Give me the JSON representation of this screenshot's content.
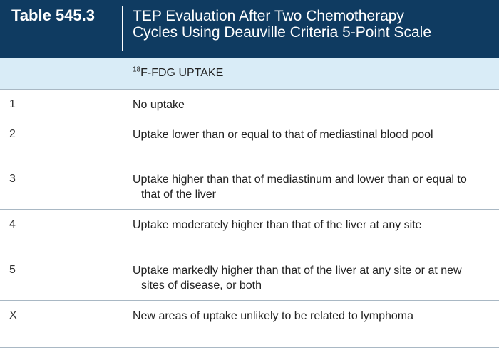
{
  "table": {
    "number": "Table 545.3",
    "title": "TEP Evaluation After Two Chemotherapy\nCycles Using Deauville Criteria 5-Point Scale",
    "column_header": {
      "superscript": "18",
      "text": "F-FDG UPTAKE"
    },
    "rows": [
      {
        "score": "1",
        "description": "No uptake"
      },
      {
        "score": "2",
        "description": "Uptake lower than or equal to that of mediastinal blood pool"
      },
      {
        "score": "3",
        "description": "Uptake higher than that of mediastinum and lower than or equal to that of the liver"
      },
      {
        "score": "4",
        "description": "Uptake moderately higher than that of the liver at any site"
      },
      {
        "score": "5",
        "description": "Uptake markedly higher than that of the liver at any site or at new sites of disease, or both"
      },
      {
        "score": "X",
        "description": "New areas of uptake unlikely to be related to lymphoma"
      }
    ]
  },
  "colors": {
    "header_bg": "#0f3b61",
    "subheader_bg": "#d9ecf7",
    "rule": "#a9b8c4"
  }
}
